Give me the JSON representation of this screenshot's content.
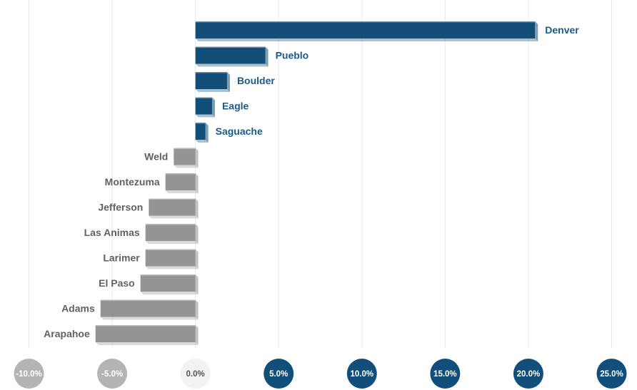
{
  "chart_data": {
    "type": "bar",
    "orientation": "horizontal",
    "categories": [
      "Denver",
      "Pueblo",
      "Boulder",
      "Eagle",
      "Saguache",
      "Weld",
      "Montezuma",
      "Jefferson",
      "Las Animas",
      "Larimer",
      "El Paso",
      "Adams",
      "Arapahoe"
    ],
    "values": [
      20.4,
      4.2,
      1.9,
      1.0,
      0.6,
      -1.3,
      -1.8,
      -2.8,
      -3.0,
      -3.0,
      -3.3,
      -5.7,
      -6.0
    ],
    "value_unit": "%",
    "xlim": [
      -10,
      25
    ],
    "x_ticks": [
      "-10.0%",
      "-5.0%",
      "0.0%",
      "5.0%",
      "10.0%",
      "15.0%",
      "20.0%",
      "25.0%"
    ],
    "tick_values": [
      -10,
      -5,
      0,
      5,
      10,
      15,
      20,
      25
    ],
    "title": "",
    "xlabel": "",
    "ylabel": "",
    "grid": true,
    "legend": "none"
  },
  "colors": {
    "positive_bar": "#124e78",
    "positive_label": "#1a5a86",
    "negative_bar": "#949494",
    "negative_label": "#616161",
    "tick_negative": "#b4b4b4",
    "tick_zero": "#f2f2f2",
    "tick_positive": "#114f7a",
    "gridline": "#e8e8e8"
  }
}
